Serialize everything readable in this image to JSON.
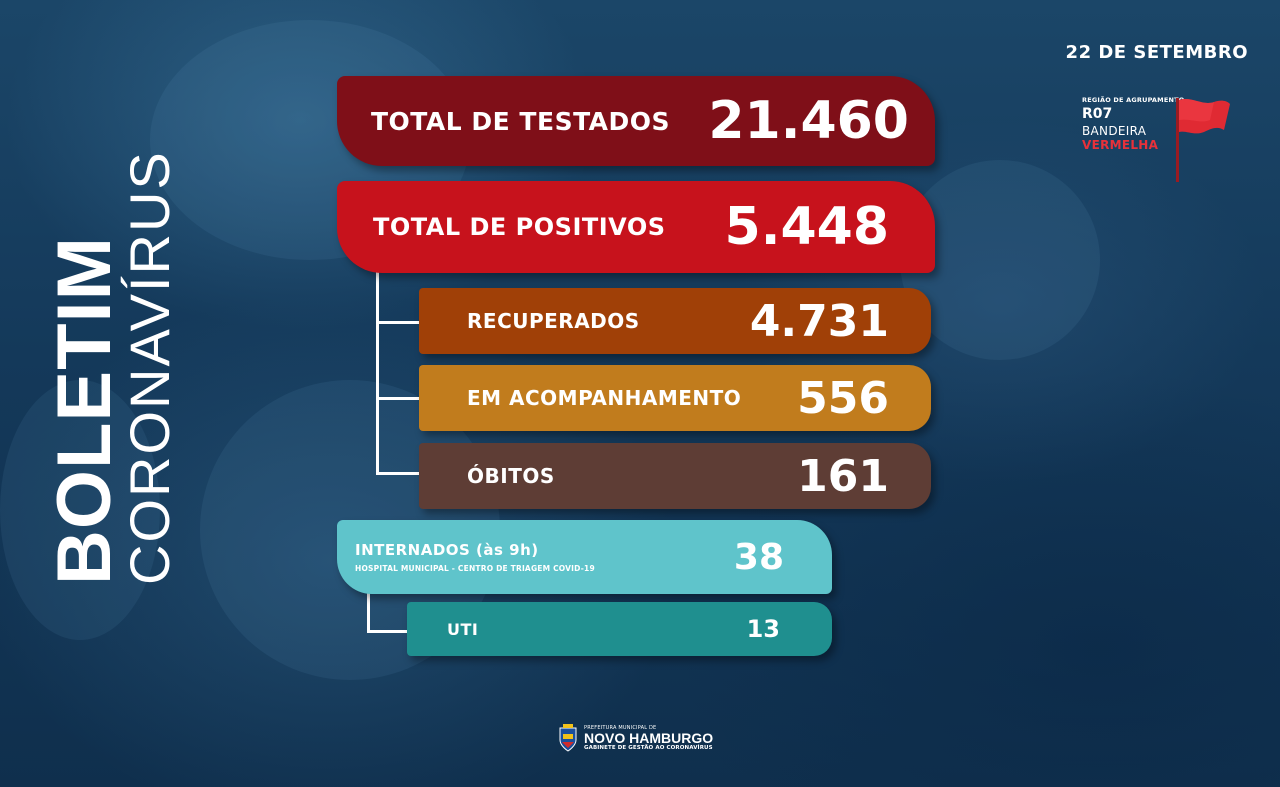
{
  "date": "22 DE SETEMBRO",
  "region": {
    "label": "REGIÃO DE AGRUPAMENTO",
    "code": "R07",
    "flag_line1": "BANDEIRA",
    "flag_line2": "VERMELHA",
    "flag_color": "#e8313a"
  },
  "side_title": {
    "line1": "BOLETIM",
    "line2": "CORONAVÍRUS"
  },
  "stats": {
    "testados": {
      "label": "TOTAL DE TESTADOS",
      "value": "21.460",
      "color": "#7f0f18"
    },
    "positivos": {
      "label": "TOTAL DE POSITIVOS",
      "value": "5.448",
      "color": "#c7121c"
    },
    "recuperados": {
      "label": "RECUPERADOS",
      "value": "4.731",
      "color": "#a04007"
    },
    "acompanhamento": {
      "label": "EM ACOMPANHAMENTO",
      "value": "556",
      "color": "#c17c1d"
    },
    "obitos": {
      "label": "ÓBITOS",
      "value": "161",
      "color": "#5e3d35"
    },
    "internados": {
      "label": "INTERNADOS (às 9h)",
      "sublabel": "HOSPITAL MUNICIPAL - CENTRO DE TRIAGEM COVID-19",
      "value": "38",
      "color": "#5fc4cb"
    },
    "uti": {
      "label": "UTI",
      "value": "13",
      "color": "#1f8f8f"
    }
  },
  "footer": {
    "prefeitura": "PREFEITURA MUNICIPAL DE",
    "city": "NOVO HAMBURGO",
    "gabinete": "GABINETE DE GESTÃO AO CORONAVÍRUS",
    "crest_icon": "city-crest-icon"
  }
}
